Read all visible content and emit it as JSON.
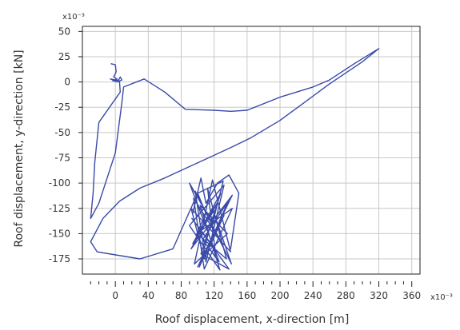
{
  "chart_data": {
    "type": "line",
    "xlabel": "Roof displacement, x-direction [m]",
    "ylabel": "Roof displacement, y-direction  [kN]",
    "x_exponent_label": "x10⁻³",
    "y_exponent_label": "x10⁻³",
    "xlim": [
      -40,
      370
    ],
    "ylim": [
      -190,
      55
    ],
    "x_major_ticks": [
      0,
      40,
      80,
      120,
      160,
      200,
      240,
      280,
      320,
      360
    ],
    "x_tick_labels": [
      "0",
      "40",
      "80",
      "120",
      "160",
      "200",
      "240",
      "280",
      "320",
      "360"
    ],
    "x_minor_step": 10,
    "y_major_ticks": [
      50,
      25,
      0,
      -25,
      -50,
      -75,
      -100,
      -125,
      -150,
      -175
    ],
    "y_tick_labels": [
      "50",
      "25",
      "0",
      "-25",
      "-50",
      "-75",
      "-100",
      "-125",
      "-150",
      "-175"
    ],
    "grid": true,
    "line_color": "#3a4aa8",
    "series": [
      {
        "values_xy": [
          [
            -5,
            18
          ],
          [
            0,
            17
          ],
          [
            1,
            10
          ],
          [
            -2,
            5
          ],
          [
            2,
            3
          ],
          [
            -3,
            1
          ],
          [
            4,
            2
          ],
          [
            6,
            5
          ],
          [
            8,
            2
          ],
          [
            2,
            0
          ],
          [
            -6,
            3
          ],
          [
            5,
            1
          ],
          [
            6,
            -10
          ],
          [
            -20,
            -40
          ],
          [
            -25,
            -80
          ],
          [
            -27,
            -110
          ],
          [
            -30,
            -135
          ],
          [
            -20,
            -120
          ],
          [
            0,
            -70
          ],
          [
            8,
            -20
          ],
          [
            10,
            -5
          ],
          [
            35,
            3
          ],
          [
            60,
            -10
          ],
          [
            85,
            -27
          ],
          [
            120,
            -28
          ],
          [
            140,
            -29
          ],
          [
            160,
            -28
          ],
          [
            200,
            -15
          ],
          [
            240,
            -5
          ],
          [
            260,
            2
          ],
          [
            290,
            18
          ],
          [
            320,
            33
          ],
          [
            300,
            20
          ],
          [
            260,
            -2
          ],
          [
            230,
            -20
          ],
          [
            200,
            -38
          ],
          [
            165,
            -55
          ],
          [
            140,
            -65
          ],
          [
            100,
            -80
          ],
          [
            60,
            -95
          ],
          [
            30,
            -105
          ],
          [
            5,
            -118
          ],
          [
            -15,
            -135
          ],
          [
            -30,
            -158
          ],
          [
            -22,
            -168
          ],
          [
            30,
            -175
          ],
          [
            70,
            -165
          ],
          [
            100,
            -110
          ],
          [
            110,
            -130
          ],
          [
            98,
            -152
          ],
          [
            125,
            -118
          ],
          [
            92,
            -165
          ],
          [
            142,
            -112
          ],
          [
            100,
            -183
          ],
          [
            132,
            -132
          ],
          [
            108,
            -175
          ],
          [
            92,
            -125
          ],
          [
            140,
            -168
          ],
          [
            118,
            -97
          ],
          [
            96,
            -180
          ],
          [
            136,
            -150
          ],
          [
            103,
            -122
          ],
          [
            127,
            -186
          ],
          [
            90,
            -142
          ],
          [
            132,
            -102
          ],
          [
            110,
            -178
          ],
          [
            97,
            -108
          ],
          [
            141,
            -180
          ],
          [
            119,
            -128
          ],
          [
            94,
            -160
          ],
          [
            128,
            -110
          ],
          [
            104,
            -170
          ],
          [
            138,
            -185
          ],
          [
            93,
            -135
          ],
          [
            121,
            -165
          ],
          [
            112,
            -105
          ],
          [
            135,
            -175
          ],
          [
            99,
            -150
          ],
          [
            142,
            -125
          ],
          [
            108,
            -185
          ],
          [
            95,
            -115
          ],
          [
            130,
            -160
          ],
          [
            116,
            -140
          ],
          [
            102,
            -183
          ],
          [
            137,
            -118
          ],
          [
            106,
            -156
          ],
          [
            126,
            -178
          ],
          [
            90,
            -100
          ],
          [
            118,
            -140
          ],
          [
            131,
            -98
          ],
          [
            100,
            -110
          ],
          [
            94,
            -130
          ],
          [
            104,
            -95
          ],
          [
            110,
            -120
          ],
          [
            124,
            -100
          ],
          [
            138,
            -92
          ],
          [
            150,
            -110
          ],
          [
            140,
            -165
          ]
        ]
      }
    ]
  }
}
